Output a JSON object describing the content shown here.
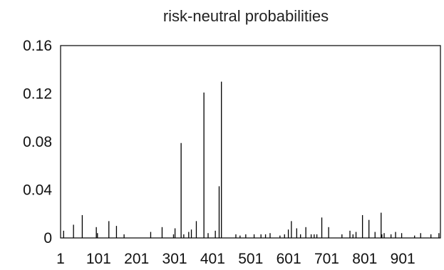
{
  "chart_data": {
    "type": "bar",
    "title": "risk-neutral probabilities",
    "xlabel": "",
    "ylabel": "",
    "xlim": [
      1,
      1000
    ],
    "ylim": [
      0,
      0.16
    ],
    "grid": false,
    "legend": "none",
    "y_ticks": [
      0,
      0.04,
      0.08,
      0.12,
      0.16
    ],
    "y_tick_labels": [
      "0",
      "0.04",
      "0.08",
      "0.12",
      "0.16"
    ],
    "x_ticks": [
      1,
      101,
      201,
      301,
      401,
      501,
      601,
      701,
      801,
      901
    ],
    "x_tick_labels": [
      "1",
      "101",
      "201",
      "301",
      "401",
      "501",
      "601",
      "701",
      "801",
      "901"
    ],
    "series": [
      {
        "x": [
          9,
          35,
          58,
          95,
          98,
          128,
          148,
          168,
          238,
          268,
          298,
          302,
          318,
          325,
          338,
          345,
          358,
          378,
          389,
          408,
          418,
          424,
          462,
          473,
          488,
          510,
          528,
          540,
          552,
          578,
          590,
          600,
          608,
          622,
          632,
          646,
          660,
          668,
          675,
          688,
          706,
          741,
          762,
          770,
          778,
          795,
          812,
          828,
          844,
          846,
          852,
          870,
          882,
          898,
          932,
          948,
          975,
          996
        ],
        "values": [
          0.006,
          0.011,
          0.019,
          0.009,
          0.004,
          0.014,
          0.01,
          0.003,
          0.005,
          0.009,
          0.003,
          0.008,
          0.079,
          0.003,
          0.005,
          0.007,
          0.014,
          0.121,
          0.004,
          0.006,
          0.043,
          0.13,
          0.003,
          0.002,
          0.003,
          0.003,
          0.003,
          0.003,
          0.004,
          0.002,
          0.003,
          0.007,
          0.014,
          0.008,
          0.003,
          0.009,
          0.003,
          0.003,
          0.003,
          0.017,
          0.009,
          0.003,
          0.006,
          0.003,
          0.005,
          0.019,
          0.015,
          0.005,
          0.021,
          0.003,
          0.004,
          0.003,
          0.005,
          0.004,
          0.002,
          0.004,
          0.003,
          0.004
        ]
      }
    ]
  }
}
